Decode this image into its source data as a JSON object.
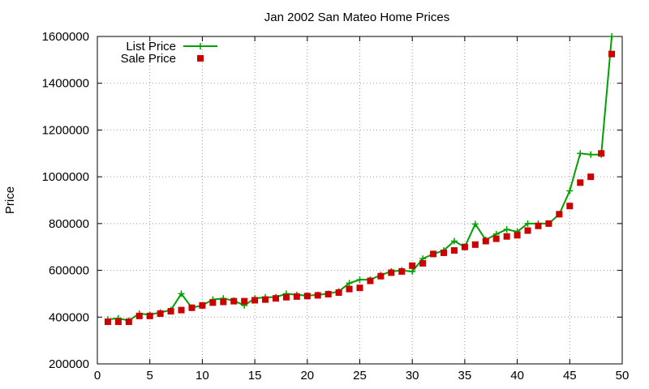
{
  "chart_data": {
    "type": "line",
    "title": "Jan 2002 San Mateo Home Prices",
    "xlabel": "",
    "ylabel": "Price",
    "xlim": [
      0,
      50
    ],
    "ylim": [
      200000,
      1600000
    ],
    "xticks": [
      0,
      5,
      10,
      15,
      20,
      25,
      30,
      35,
      40,
      45,
      50
    ],
    "yticks": [
      200000,
      400000,
      600000,
      800000,
      1000000,
      1200000,
      1400000,
      1600000
    ],
    "grid": true,
    "legend_position": "top-left",
    "x": [
      1,
      2,
      3,
      4,
      5,
      6,
      7,
      8,
      9,
      10,
      11,
      12,
      13,
      14,
      15,
      16,
      17,
      18,
      19,
      20,
      21,
      22,
      23,
      24,
      25,
      26,
      27,
      28,
      29,
      30,
      31,
      32,
      33,
      34,
      35,
      36,
      37,
      38,
      39,
      40,
      41,
      42,
      43,
      44,
      45,
      46,
      47,
      48,
      49
    ],
    "series": [
      {
        "name": "List Price",
        "style": "line-plus",
        "color": "#00a000",
        "values": [
          390000,
          395000,
          385000,
          415000,
          410000,
          420000,
          430000,
          500000,
          440000,
          450000,
          475000,
          480000,
          470000,
          450000,
          480000,
          485000,
          485000,
          500000,
          495000,
          492000,
          495000,
          500000,
          510000,
          545000,
          560000,
          560000,
          580000,
          595000,
          600000,
          595000,
          650000,
          670000,
          685000,
          725000,
          700000,
          798000,
          730000,
          755000,
          775000,
          765000,
          800000,
          800000,
          800000,
          840000,
          940000,
          1100000,
          1095000,
          1095000,
          1600000
        ]
      },
      {
        "name": "Sale Price",
        "style": "points-square",
        "color": "#cc0000",
        "values": [
          380000,
          380000,
          380000,
          405000,
          405000,
          415000,
          425000,
          430000,
          440000,
          450000,
          462000,
          465000,
          468000,
          468000,
          472000,
          475000,
          480000,
          485000,
          488000,
          490000,
          493000,
          498000,
          505000,
          520000,
          525000,
          555000,
          575000,
          590000,
          595000,
          620000,
          630000,
          670000,
          675000,
          685000,
          700000,
          710000,
          725000,
          735000,
          745000,
          750000,
          770000,
          790000,
          800000,
          840000,
          875000,
          975000,
          1000000,
          1100000,
          1525000
        ]
      }
    ]
  }
}
